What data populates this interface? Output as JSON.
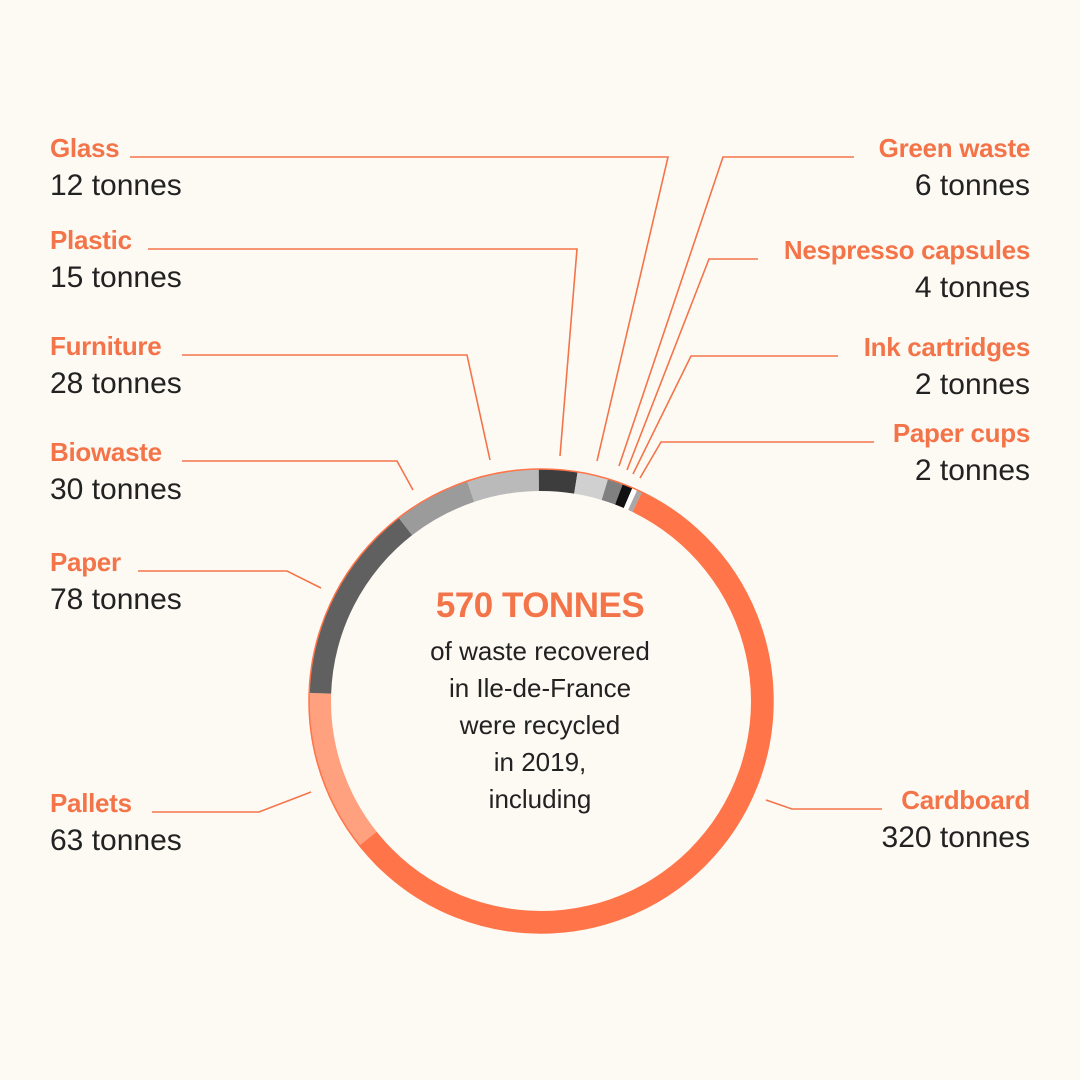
{
  "center": {
    "total": "570 TONNES",
    "lines": [
      "of waste recovered",
      "in Ile-de-France",
      "were recycled",
      "in 2019,",
      "including"
    ]
  },
  "chart_data": {
    "type": "pie",
    "variant": "donut",
    "title": "570 TONNES",
    "unit": "tonnes",
    "slices": [
      {
        "name": "Cardboard",
        "value": 320,
        "label": "320 tonnes",
        "color": "#ff7448",
        "side": "right"
      },
      {
        "name": "Pallets",
        "value": 63,
        "label": "63 tonnes",
        "color": "#ffa07f",
        "side": "left"
      },
      {
        "name": "Paper",
        "value": 78,
        "label": "78 tonnes",
        "color": "#606060",
        "side": "left"
      },
      {
        "name": "Biowaste",
        "value": 30,
        "label": "30 tonnes",
        "color": "#9b9b9b",
        "side": "left"
      },
      {
        "name": "Furniture",
        "value": 28,
        "label": "28 tonnes",
        "color": "#bababa",
        "side": "left"
      },
      {
        "name": "Plastic",
        "value": 15,
        "label": "15 tonnes",
        "color": "#3d3d3d",
        "side": "left"
      },
      {
        "name": "Glass",
        "value": 12,
        "label": "12 tonnes",
        "color": "#d0d0d0",
        "side": "left"
      },
      {
        "name": "Green waste",
        "value": 6,
        "label": "6 tonnes",
        "color": "#808080",
        "side": "right"
      },
      {
        "name": "Nespresso capsules",
        "value": 4,
        "label": "4 tonnes",
        "color": "#111111",
        "side": "right"
      },
      {
        "name": "Ink cartridges",
        "value": 2,
        "label": "2 tonnes",
        "color": "#ffffff",
        "side": "right"
      },
      {
        "name": "Paper cups",
        "value": 2,
        "label": "2 tonnes",
        "color": "#a8a8a8",
        "side": "right"
      }
    ]
  }
}
